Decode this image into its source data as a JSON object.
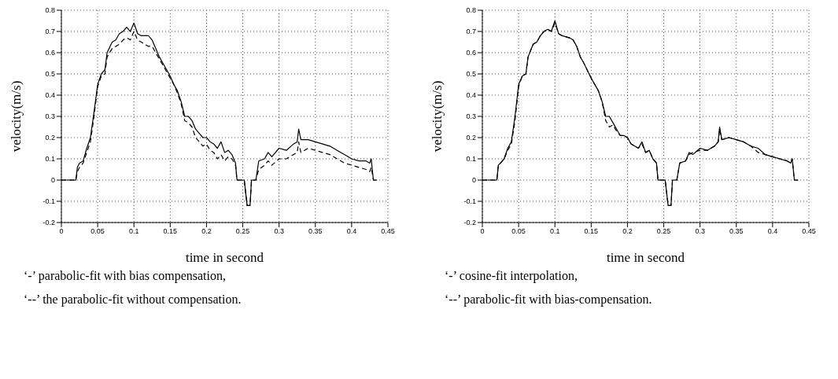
{
  "chart_data": [
    {
      "type": "line",
      "xlabel": "time in second",
      "ylabel": "velocity(m/s)",
      "xlim": [
        0,
        0.45
      ],
      "xticks": [
        0,
        0.05,
        0.1,
        0.15,
        0.2,
        0.25,
        0.3,
        0.35,
        0.4,
        0.45
      ],
      "ylim": [
        -0.2,
        0.8
      ],
      "yticks": [
        -0.2,
        -0.1,
        0,
        0.1,
        0.2,
        0.3,
        0.4,
        0.5,
        0.6,
        0.7,
        0.8
      ],
      "grid": true,
      "annotations": [
        "‘-’ parabolic-fit with bias compensation,",
        "‘--’ the parabolic-fit without compensation."
      ],
      "x": [
        0,
        0.02,
        0.022,
        0.025,
        0.03,
        0.035,
        0.04,
        0.045,
        0.05,
        0.055,
        0.06,
        0.063,
        0.07,
        0.075,
        0.08,
        0.085,
        0.09,
        0.095,
        0.1,
        0.105,
        0.11,
        0.12,
        0.125,
        0.13,
        0.135,
        0.14,
        0.15,
        0.155,
        0.16,
        0.165,
        0.17,
        0.175,
        0.18,
        0.185,
        0.19,
        0.195,
        0.2,
        0.205,
        0.21,
        0.215,
        0.22,
        0.225,
        0.23,
        0.235,
        0.24,
        0.242,
        0.252,
        0.256,
        0.26,
        0.262,
        0.268,
        0.272,
        0.28,
        0.285,
        0.29,
        0.3,
        0.31,
        0.32,
        0.325,
        0.327,
        0.33,
        0.34,
        0.35,
        0.36,
        0.37,
        0.38,
        0.39,
        0.4,
        0.41,
        0.42,
        0.425,
        0.427,
        0.43,
        0.435
      ],
      "series": [
        {
          "color": "#000000",
          "line_style": "solid",
          "values": [
            0,
            0,
            0.06,
            0.08,
            0.09,
            0.15,
            0.2,
            0.32,
            0.45,
            0.5,
            0.52,
            0.6,
            0.65,
            0.66,
            0.69,
            0.7,
            0.72,
            0.7,
            0.74,
            0.69,
            0.68,
            0.68,
            0.66,
            0.62,
            0.58,
            0.55,
            0.49,
            0.45,
            0.42,
            0.37,
            0.3,
            0.3,
            0.28,
            0.24,
            0.22,
            0.2,
            0.2,
            0.18,
            0.17,
            0.15,
            0.18,
            0.13,
            0.14,
            0.12,
            0.08,
            0,
            0,
            -0.12,
            -0.12,
            0,
            0,
            0.09,
            0.1,
            0.13,
            0.11,
            0.15,
            0.14,
            0.17,
            0.18,
            0.24,
            0.19,
            0.19,
            0.18,
            0.17,
            0.16,
            0.14,
            0.12,
            0.1,
            0.09,
            0.09,
            0.08,
            0.1,
            0,
            0
          ]
        },
        {
          "color": "#000000",
          "line_style": "dashed",
          "values": [
            0,
            0,
            0.04,
            0.06,
            0.08,
            0.13,
            0.18,
            0.3,
            0.44,
            0.49,
            0.5,
            0.58,
            0.62,
            0.63,
            0.64,
            0.66,
            0.67,
            0.66,
            0.7,
            0.66,
            0.65,
            0.63,
            0.63,
            0.6,
            0.57,
            0.54,
            0.48,
            0.45,
            0.41,
            0.36,
            0.28,
            0.27,
            0.25,
            0.2,
            0.18,
            0.16,
            0.17,
            0.14,
            0.13,
            0.1,
            0.12,
            0.09,
            0.11,
            0.1,
            0.07,
            0,
            0,
            -0.12,
            -0.12,
            0,
            0,
            0.05,
            0.07,
            0.09,
            0.07,
            0.1,
            0.1,
            0.12,
            0.13,
            0.18,
            0.13,
            0.15,
            0.14,
            0.13,
            0.12,
            0.1,
            0.08,
            0.07,
            0.06,
            0.05,
            0.04,
            0.06,
            0,
            0
          ]
        }
      ]
    },
    {
      "type": "line",
      "xlabel": "time in second",
      "ylabel": "velocity(m/s)",
      "xlim": [
        0,
        0.45
      ],
      "xticks": [
        0,
        0.05,
        0.1,
        0.15,
        0.2,
        0.25,
        0.3,
        0.35,
        0.4,
        0.45
      ],
      "ylim": [
        -0.2,
        0.8
      ],
      "yticks": [
        -0.2,
        -0.1,
        0,
        0.1,
        0.2,
        0.3,
        0.4,
        0.5,
        0.6,
        0.7,
        0.8
      ],
      "grid": true,
      "annotations": [
        "‘-’ cosine-fit interpolation,",
        "‘--’ parabolic-fit with bias-compensation."
      ],
      "x": [
        0,
        0.02,
        0.022,
        0.025,
        0.03,
        0.035,
        0.04,
        0.045,
        0.05,
        0.055,
        0.06,
        0.063,
        0.07,
        0.075,
        0.08,
        0.085,
        0.09,
        0.095,
        0.1,
        0.105,
        0.11,
        0.12,
        0.125,
        0.13,
        0.135,
        0.14,
        0.15,
        0.155,
        0.16,
        0.165,
        0.17,
        0.175,
        0.18,
        0.185,
        0.19,
        0.195,
        0.2,
        0.205,
        0.21,
        0.215,
        0.22,
        0.225,
        0.23,
        0.235,
        0.24,
        0.242,
        0.252,
        0.256,
        0.26,
        0.262,
        0.268,
        0.272,
        0.28,
        0.285,
        0.29,
        0.3,
        0.31,
        0.32,
        0.325,
        0.327,
        0.33,
        0.34,
        0.35,
        0.36,
        0.37,
        0.38,
        0.39,
        0.4,
        0.41,
        0.42,
        0.425,
        0.427,
        0.43,
        0.435
      ],
      "series": [
        {
          "color": "#000000",
          "line_style": "solid",
          "values": [
            0,
            0,
            0.07,
            0.08,
            0.1,
            0.15,
            0.18,
            0.3,
            0.45,
            0.49,
            0.5,
            0.58,
            0.64,
            0.65,
            0.68,
            0.7,
            0.71,
            0.7,
            0.75,
            0.69,
            0.68,
            0.67,
            0.66,
            0.63,
            0.58,
            0.55,
            0.48,
            0.45,
            0.42,
            0.37,
            0.3,
            0.3,
            0.27,
            0.24,
            0.21,
            0.21,
            0.2,
            0.17,
            0.16,
            0.15,
            0.18,
            0.13,
            0.14,
            0.1,
            0.08,
            0,
            0,
            -0.12,
            -0.12,
            0,
            0,
            0.08,
            0.09,
            0.13,
            0.12,
            0.15,
            0.14,
            0.16,
            0.18,
            0.25,
            0.19,
            0.2,
            0.19,
            0.18,
            0.16,
            0.15,
            0.12,
            0.11,
            0.1,
            0.09,
            0.08,
            0.1,
            0,
            0
          ]
        },
        {
          "color": "#000000",
          "line_style": "dashed",
          "values": [
            0,
            0,
            0.07,
            0.08,
            0.1,
            0.14,
            0.17,
            0.28,
            0.44,
            0.49,
            0.5,
            0.58,
            0.64,
            0.65,
            0.68,
            0.7,
            0.71,
            0.7,
            0.74,
            0.69,
            0.68,
            0.67,
            0.66,
            0.63,
            0.58,
            0.55,
            0.48,
            0.45,
            0.42,
            0.37,
            0.28,
            0.25,
            0.26,
            0.23,
            0.21,
            0.21,
            0.2,
            0.17,
            0.16,
            0.15,
            0.17,
            0.13,
            0.14,
            0.1,
            0.08,
            0,
            0,
            -0.12,
            -0.12,
            0,
            0,
            0.08,
            0.09,
            0.12,
            0.13,
            0.14,
            0.14,
            0.16,
            0.18,
            0.24,
            0.19,
            0.2,
            0.19,
            0.18,
            0.16,
            0.13,
            0.12,
            0.11,
            0.1,
            0.09,
            0.08,
            0.1,
            0,
            0
          ]
        }
      ]
    }
  ]
}
